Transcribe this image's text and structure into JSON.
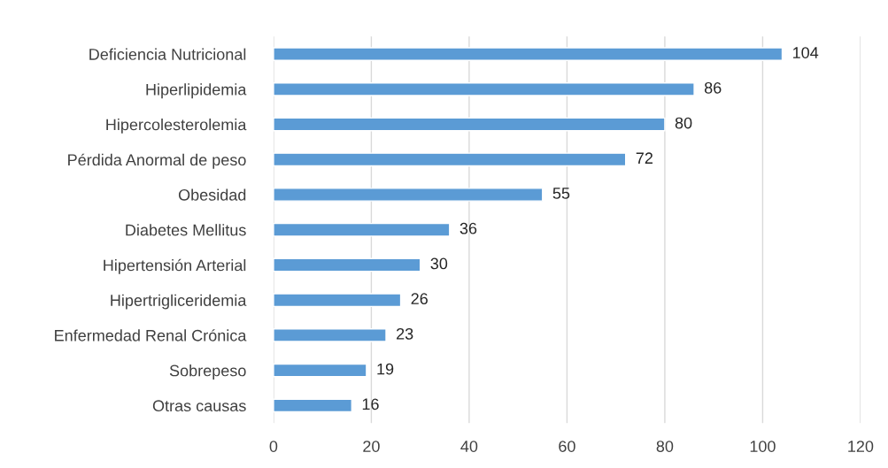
{
  "chart_data": {
    "type": "bar",
    "orientation": "horizontal",
    "categories": [
      "Deficiencia Nutricional",
      "Hiperlipidemia",
      "Hipercolesterolemia",
      "Pérdida Anormal de peso",
      "Obesidad",
      "Diabetes Mellitus",
      "Hipertensión Arterial",
      "Hipertrigliceridemia",
      "Enfermedad Renal Crónica",
      "Sobrepeso",
      "Otras causas"
    ],
    "values": [
      104,
      86,
      80,
      72,
      55,
      36,
      30,
      26,
      23,
      19,
      16
    ],
    "color": "#5b9bd5",
    "xlim": [
      0,
      120
    ],
    "xticks": [
      0,
      20,
      40,
      60,
      80,
      100,
      120
    ],
    "grid": "x",
    "data_labels": true,
    "legend": false
  }
}
